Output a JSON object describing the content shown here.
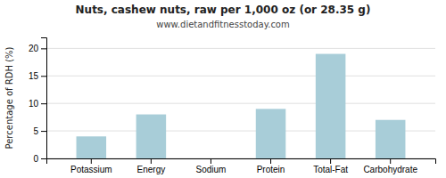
{
  "chart_data": {
    "type": "bar",
    "title": "Nuts, cashew nuts, raw per 1,000 oz (or 28.35 g)",
    "subtitle": "www.dietandfitnesstoday.com",
    "categories": [
      "Potassium",
      "Energy",
      "Sodium",
      "Protein",
      "Total-Fat",
      "Carbohydrate"
    ],
    "values": [
      4,
      8,
      0,
      9,
      19,
      7
    ],
    "color": "#a8cdd8",
    "ylabel": "Percentage of RDH (%)",
    "ylim": [
      0,
      22
    ],
    "yticks": [
      0,
      5,
      10,
      15,
      20
    ],
    "grid": true
  }
}
